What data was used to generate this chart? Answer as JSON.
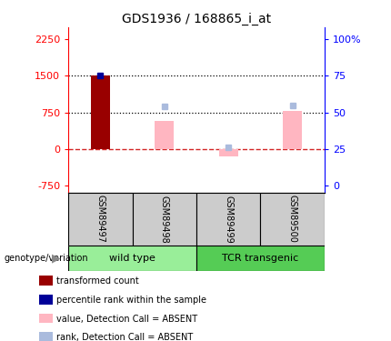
{
  "title": "GDS1936 / 168865_i_at",
  "samples": [
    "GSM89497",
    "GSM89498",
    "GSM89499",
    "GSM89500"
  ],
  "transformed_count": [
    1510,
    null,
    null,
    null
  ],
  "percentile_rank_val": 1510,
  "percentile_rank_idx": 0,
  "value_absent": [
    null,
    580,
    -150,
    780
  ],
  "rank_absent": [
    null,
    870,
    30,
    900
  ],
  "left_yticks": [
    -750,
    0,
    750,
    1500,
    2250
  ],
  "right_yticks": [
    0,
    25,
    50,
    75,
    100
  ],
  "left_ylim": [
    -900,
    2500
  ],
  "hlines_dotted": [
    1500,
    750
  ],
  "bar_width": 0.3,
  "x_positions": [
    0,
    1,
    2,
    3
  ],
  "dark_red": "#990000",
  "dark_blue": "#000099",
  "light_pink": "#FFB6C1",
  "light_blue": "#AABBDD",
  "zero_line_color": "#CC0000",
  "sample_bg": "#CCCCCC",
  "wt_color": "#99EE99",
  "tcr_color": "#55CC55"
}
